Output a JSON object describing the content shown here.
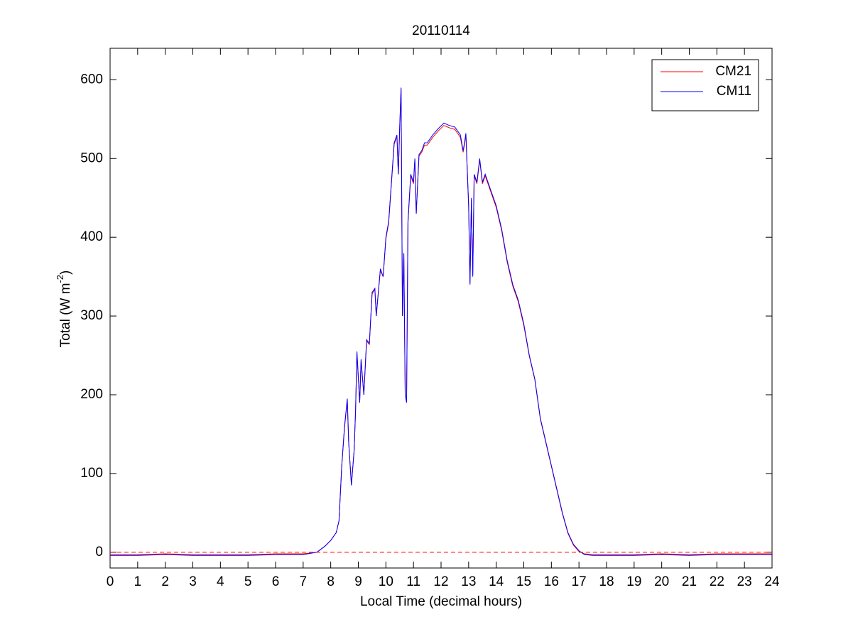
{
  "chart_data": {
    "type": "line",
    "title": "20110114",
    "xlabel": "Local Time (decimal hours)",
    "ylabel": [
      "Total (W m",
      "-2",
      ")"
    ],
    "x": [
      0,
      1,
      2,
      3,
      4,
      5,
      6,
      7,
      7.5,
      7.8,
      8,
      8.2,
      8.3,
      8.4,
      8.5,
      8.6,
      8.65,
      8.75,
      8.85,
      8.9,
      8.95,
      9.05,
      9.1,
      9.2,
      9.3,
      9.4,
      9.5,
      9.6,
      9.65,
      9.7,
      9.8,
      9.9,
      10,
      10.1,
      10.2,
      10.3,
      10.4,
      10.45,
      10.5,
      10.55,
      10.6,
      10.65,
      10.7,
      10.75,
      10.8,
      10.9,
      11,
      11.05,
      11.1,
      11.2,
      11.3,
      11.4,
      11.5,
      11.7,
      11.9,
      12.1,
      12.3,
      12.5,
      12.7,
      12.8,
      12.85,
      12.9,
      13,
      13.05,
      13.1,
      13.15,
      13.2,
      13.3,
      13.4,
      13.5,
      13.6,
      13.7,
      13.8,
      14,
      14.2,
      14.4,
      14.6,
      14.8,
      15,
      15.2,
      15.4,
      15.6,
      15.8,
      16,
      16.2,
      16.4,
      16.6,
      16.8,
      17,
      17.2,
      17.5,
      18,
      19,
      20,
      21,
      22,
      23,
      24
    ],
    "series": [
      {
        "name": "CM21",
        "color": "#ff0000",
        "values": [
          -3,
          -3,
          -2,
          -3,
          -3,
          -3,
          -2,
          -2,
          0,
          8,
          15,
          25,
          40,
          110,
          158,
          193,
          140,
          86,
          130,
          180,
          253,
          190,
          243,
          200,
          268,
          264,
          328,
          334,
          300,
          320,
          358,
          350,
          398,
          418,
          468,
          518,
          528,
          480,
          538,
          588,
          300,
          378,
          200,
          191,
          418,
          478,
          468,
          498,
          430,
          503,
          508,
          517,
          517,
          527,
          535,
          542,
          539,
          537,
          527,
          508,
          518,
          530,
          440,
          342,
          448,
          352,
          478,
          468,
          498,
          468,
          478,
          468,
          458,
          438,
          408,
          368,
          338,
          318,
          288,
          249,
          219,
          169,
          139,
          109,
          79,
          49,
          24,
          9,
          1,
          -2,
          -3,
          -3,
          -3,
          -2,
          -3,
          -2,
          -2,
          -2
        ]
      },
      {
        "name": "CM11",
        "color": "#0000ff",
        "values": [
          -4,
          -4,
          -3,
          -4,
          -4,
          -4,
          -3,
          -3,
          0,
          8,
          15,
          25,
          40,
          110,
          160,
          195,
          140,
          85,
          130,
          180,
          255,
          190,
          245,
          200,
          270,
          265,
          330,
          335,
          300,
          320,
          360,
          350,
          400,
          420,
          470,
          520,
          530,
          480,
          540,
          590,
          300,
          380,
          200,
          190,
          420,
          480,
          470,
          500,
          430,
          505,
          510,
          520,
          520,
          530,
          538,
          545,
          542,
          540,
          530,
          510,
          520,
          532,
          440,
          340,
          450,
          350,
          480,
          470,
          500,
          470,
          480,
          470,
          460,
          440,
          410,
          370,
          340,
          320,
          290,
          250,
          220,
          170,
          140,
          110,
          80,
          50,
          25,
          10,
          2,
          -3,
          -4,
          -4,
          -4,
          -3,
          -4,
          -3,
          -3,
          -3
        ]
      }
    ],
    "reference_line": {
      "value": 0,
      "color": "#ff0000",
      "style": "dashed"
    },
    "xlim": [
      0,
      24
    ],
    "xticks": [
      0,
      1,
      2,
      3,
      4,
      5,
      6,
      7,
      8,
      9,
      10,
      11,
      12,
      13,
      14,
      15,
      16,
      17,
      18,
      19,
      20,
      21,
      22,
      23,
      24
    ],
    "ylim": [
      -20,
      640
    ],
    "yticks": [
      0,
      100,
      200,
      300,
      400,
      500,
      600
    ],
    "legend": "top-right"
  }
}
